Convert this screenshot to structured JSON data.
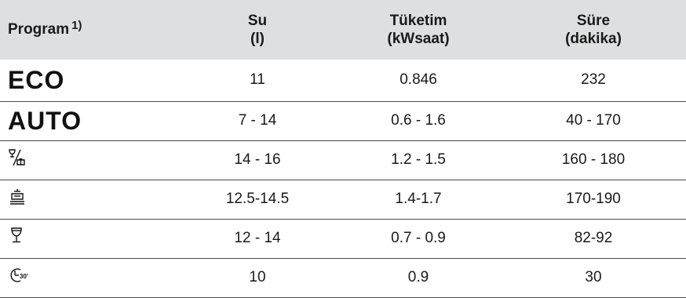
{
  "table": {
    "headers": {
      "program": "Program",
      "program_note": "1)",
      "water": [
        "Su",
        "(l)"
      ],
      "energy": [
        "Tüketim",
        "(kWsaat)"
      ],
      "duration": [
        "Süre",
        "(dakika)"
      ]
    },
    "rows": [
      {
        "program": "ECO",
        "icon": null,
        "water": "11",
        "energy": "0.846",
        "duration": "232"
      },
      {
        "program": "AUTO",
        "icon": null,
        "water": "7 - 14",
        "energy": "0.6 - 1.6",
        "duration": "40 - 170"
      },
      {
        "program": null,
        "icon": "glass-plate-icon",
        "water": "14 - 16",
        "energy": "1.2 - 1.5",
        "duration": "160 - 180"
      },
      {
        "program": null,
        "icon": "pot-icon",
        "water": "12.5-14.5",
        "energy": "1.4-1.7",
        "duration": "170-190"
      },
      {
        "program": null,
        "icon": "glass-icon",
        "water": "12 - 14",
        "energy": "0.7 - 0.9",
        "duration": "82-92"
      },
      {
        "program": null,
        "icon": "quick-30-icon",
        "water": "10",
        "energy": "0.9",
        "duration": "30"
      }
    ]
  }
}
